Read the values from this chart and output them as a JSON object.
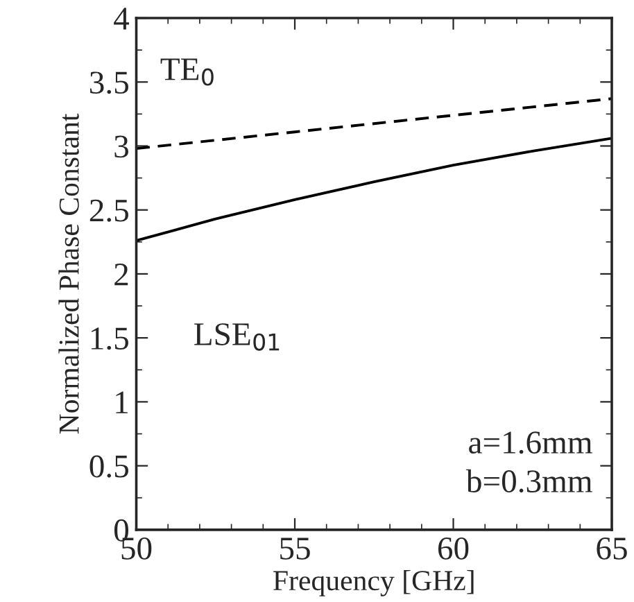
{
  "chart_data": {
    "type": "line",
    "xlabel": "Frequency [GHz]",
    "ylabel": "Normalized Phase Constant",
    "xlim": [
      50,
      65
    ],
    "xticks": [
      50,
      55,
      60,
      65
    ],
    "ylim": [
      0,
      4
    ],
    "yticks": [
      0,
      0.5,
      1,
      1.5,
      2,
      2.5,
      3,
      3.5,
      4
    ],
    "grid": false,
    "legend": false,
    "marker": "none",
    "series": [
      {
        "name": "TE$_{0}$",
        "color": "#000000",
        "line_style": "dashed",
        "x": [
          50,
          55,
          60,
          65
        ],
        "values": [
          2.98,
          3.11,
          3.24,
          3.37
        ]
      },
      {
        "name": "LSE$_{01}$",
        "color": "#000000",
        "line_style": "solid",
        "x": [
          50,
          52.5,
          55,
          57.5,
          60,
          62.5,
          65
        ],
        "values": [
          2.26,
          2.43,
          2.58,
          2.72,
          2.85,
          2.96,
          3.06
        ]
      }
    ],
    "annotations": [
      "a=1.6mm\nb=0.3mm"
    ]
  }
}
